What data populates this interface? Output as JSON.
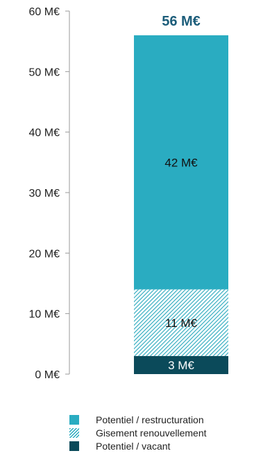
{
  "chart_data": {
    "type": "bar",
    "stacked": true,
    "unit": "M€",
    "categories": [
      ""
    ],
    "series": [
      {
        "name": "Potentiel / vacant",
        "values": [
          3
        ],
        "label": "3 M€",
        "color": "#0b4a5a",
        "pattern": "solid"
      },
      {
        "name": "Gisement renouvellement",
        "values": [
          11
        ],
        "label": "11 M€",
        "color": "#27a8bd",
        "pattern": "hatch"
      },
      {
        "name": "Potentiel / restructuration",
        "values": [
          42
        ],
        "label": "42 M€",
        "color": "#2aacc1",
        "pattern": "solid"
      }
    ],
    "total": {
      "value": 56,
      "label": "56 M€",
      "color": "#1c5d7a"
    },
    "ylim": [
      0,
      60
    ],
    "yticks": [
      0,
      10,
      20,
      30,
      40,
      50,
      60
    ],
    "ytick_labels": [
      "0 M€",
      "10 M€",
      "20 M€",
      "30 M€",
      "40 M€",
      "50 M€",
      "60 M€"
    ],
    "grid": false,
    "legend_position": "bottom"
  },
  "legend": {
    "items": [
      {
        "label": "Potentiel / restructuration",
        "color": "#2aacc1",
        "pattern": "solid"
      },
      {
        "label": "Gisement renouvellement",
        "color": "#27a8bd",
        "pattern": "hatch"
      },
      {
        "label": "Potentiel / vacant",
        "color": "#0b4a5a",
        "pattern": "solid"
      }
    ]
  }
}
